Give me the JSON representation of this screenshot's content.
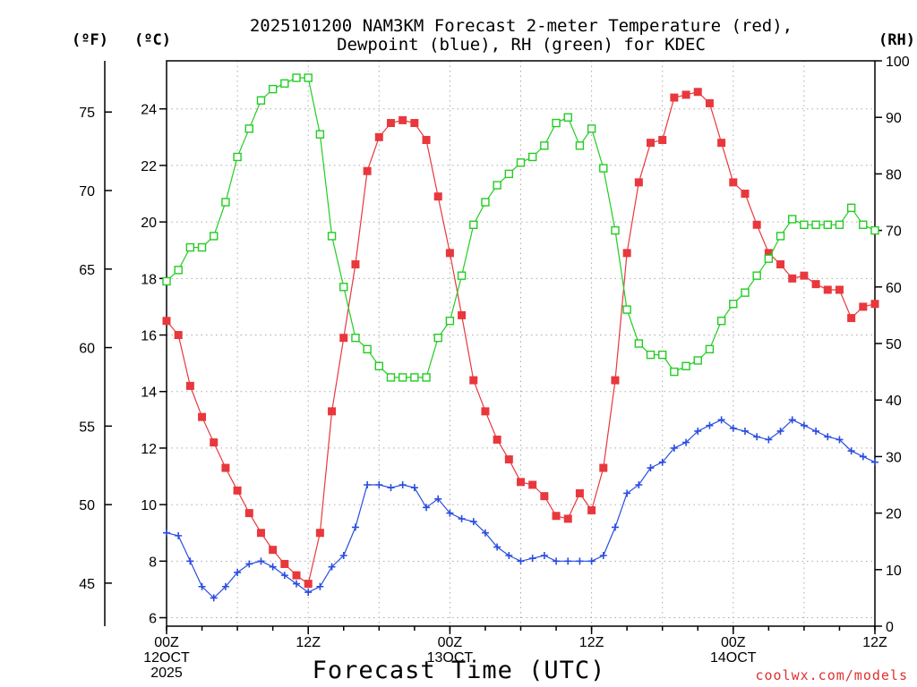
{
  "chart_data": {
    "type": "line",
    "title_lines": [
      "2025101200 NAM3KM Forecast 2-meter Temperature (red),",
      "Dewpoint (blue), RH (green) for KDEC"
    ],
    "axis_unit_labels": {
      "fahrenheit": "(ºF)",
      "celsius": "(ºC)",
      "rh": "(RH)"
    },
    "xlabel": "Forecast Time (UTC)",
    "credit": "coolwx.com/models",
    "x_range_hours": [
      0,
      60
    ],
    "x_ticks": [
      {
        "hour": 0,
        "lines": [
          "00Z",
          "12OCT",
          "2025"
        ]
      },
      {
        "hour": 12,
        "lines": [
          "12Z"
        ]
      },
      {
        "hour": 24,
        "lines": [
          "00Z",
          "13OCT"
        ]
      },
      {
        "hour": 36,
        "lines": [
          "12Z"
        ]
      },
      {
        "hour": 48,
        "lines": [
          "00Z",
          "14OCT"
        ]
      },
      {
        "hour": 60,
        "lines": [
          "12Z"
        ]
      }
    ],
    "celsius_axis": {
      "range": [
        5.7,
        25.7
      ],
      "ticks": [
        6,
        8,
        10,
        12,
        14,
        16,
        18,
        20,
        22,
        24
      ]
    },
    "fahrenheit_axis": {
      "ticks": [
        45,
        50,
        55,
        60,
        65,
        70,
        75
      ]
    },
    "rh_axis": {
      "range": [
        0,
        100
      ],
      "ticks": [
        0,
        10,
        20,
        30,
        40,
        50,
        60,
        70,
        80,
        90,
        100
      ]
    },
    "grid": true,
    "series": [
      {
        "name": "Temperature",
        "color": "#e8383d",
        "marker": "filled-square",
        "axis": "celsius",
        "values": [
          16.5,
          16.0,
          14.2,
          13.1,
          12.2,
          11.3,
          10.5,
          9.7,
          9.0,
          8.4,
          7.9,
          7.5,
          7.2,
          9.0,
          13.3,
          15.9,
          18.5,
          21.8,
          23.0,
          23.5,
          23.6,
          23.5,
          22.9,
          20.9,
          18.9,
          16.7,
          14.4,
          13.3,
          12.3,
          11.6,
          10.8,
          10.7,
          10.3,
          9.6,
          9.5,
          10.4,
          9.8,
          11.3,
          14.4,
          18.9,
          21.4,
          22.8,
          22.9,
          24.4,
          24.5,
          24.6,
          24.2,
          22.8,
          21.4,
          21.0,
          19.9,
          18.9,
          18.5,
          18.0,
          18.1,
          17.8,
          17.6,
          17.6,
          16.6,
          17.0,
          17.1
        ]
      },
      {
        "name": "Dewpoint",
        "color": "#2a4de0",
        "marker": "plus",
        "axis": "celsius",
        "values": [
          9.0,
          8.9,
          8.0,
          7.1,
          6.7,
          7.1,
          7.6,
          7.9,
          8.0,
          7.8,
          7.5,
          7.2,
          6.9,
          7.1,
          7.8,
          8.2,
          9.2,
          10.7,
          10.7,
          10.6,
          10.7,
          10.6,
          9.9,
          10.2,
          9.7,
          9.5,
          9.4,
          9.0,
          8.5,
          8.2,
          8.0,
          8.1,
          8.2,
          8.0,
          8.0,
          8.0,
          8.0,
          8.2,
          9.2,
          10.4,
          10.7,
          11.3,
          11.5,
          12.0,
          12.2,
          12.6,
          12.8,
          13.0,
          12.7,
          12.6,
          12.4,
          12.3,
          12.6,
          13.0,
          12.8,
          12.6,
          12.4,
          12.3,
          11.9,
          11.7,
          11.5
        ]
      },
      {
        "name": "Relative Humidity",
        "color": "#22cc22",
        "marker": "open-square",
        "axis": "rh",
        "values": [
          61,
          63,
          67,
          67,
          69,
          75,
          83,
          88,
          93,
          95,
          96,
          97,
          97,
          87,
          69,
          60,
          51,
          49,
          46,
          44,
          44,
          44,
          44,
          51,
          54,
          62,
          71,
          75,
          78,
          80,
          82,
          83,
          85,
          89,
          90,
          85,
          88,
          81,
          70,
          56,
          50,
          48,
          48,
          45,
          46,
          47,
          49,
          54,
          57,
          59,
          62,
          65,
          69,
          72,
          71,
          71,
          71,
          71,
          74,
          71,
          70
        ]
      }
    ]
  }
}
